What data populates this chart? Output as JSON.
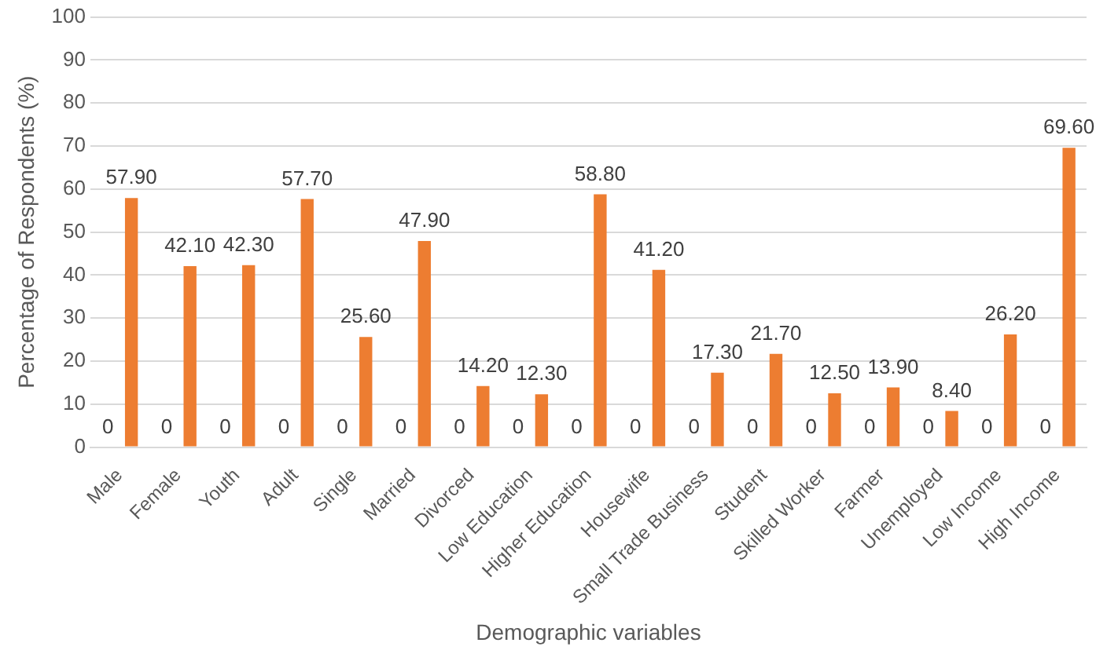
{
  "chart_data": {
    "type": "bar",
    "xlabel": "Demographic variables",
    "ylabel": "Percentage of Respondents (%)",
    "categories": [
      "Male",
      "Female",
      "Youth",
      "Adult",
      "Single",
      "Married",
      "Divorced",
      "Low Education",
      "Higher Education",
      "Housewife",
      "Small Trade Business",
      "Student",
      "Skilled Worker",
      "Farmer",
      "Unemployed",
      "Low Income",
      "High Income"
    ],
    "series": [
      {
        "color": "#4472c4",
        "values": [
          0,
          0,
          0,
          0,
          0,
          0,
          0,
          0,
          0,
          0,
          0,
          0,
          0,
          0,
          0,
          0,
          0
        ],
        "value_labels": [
          "0",
          "0",
          "0",
          "0",
          "0",
          "0",
          "0",
          "0",
          "0",
          "0",
          "0",
          "0",
          "0",
          "0",
          "0",
          "0",
          "0"
        ]
      },
      {
        "color": "#ed7d31",
        "values": [
          57.9,
          42.1,
          42.3,
          57.7,
          25.6,
          47.9,
          14.2,
          12.3,
          58.8,
          41.2,
          17.3,
          21.7,
          12.5,
          13.9,
          8.4,
          26.2,
          69.6
        ],
        "value_labels": [
          "57.90",
          "42.10",
          "42.30",
          "57.70",
          "25.60",
          "47.90",
          "14.20",
          "12.30",
          "58.80",
          "41.20",
          "17.30",
          "21.70",
          "12.50",
          "13.90",
          "8.40",
          "26.20",
          "69.60"
        ]
      }
    ],
    "ylim": [
      0,
      100
    ],
    "yticks": [
      0,
      10,
      20,
      30,
      40,
      50,
      60,
      70,
      80,
      90,
      100
    ],
    "grid": "y",
    "legend": false
  }
}
